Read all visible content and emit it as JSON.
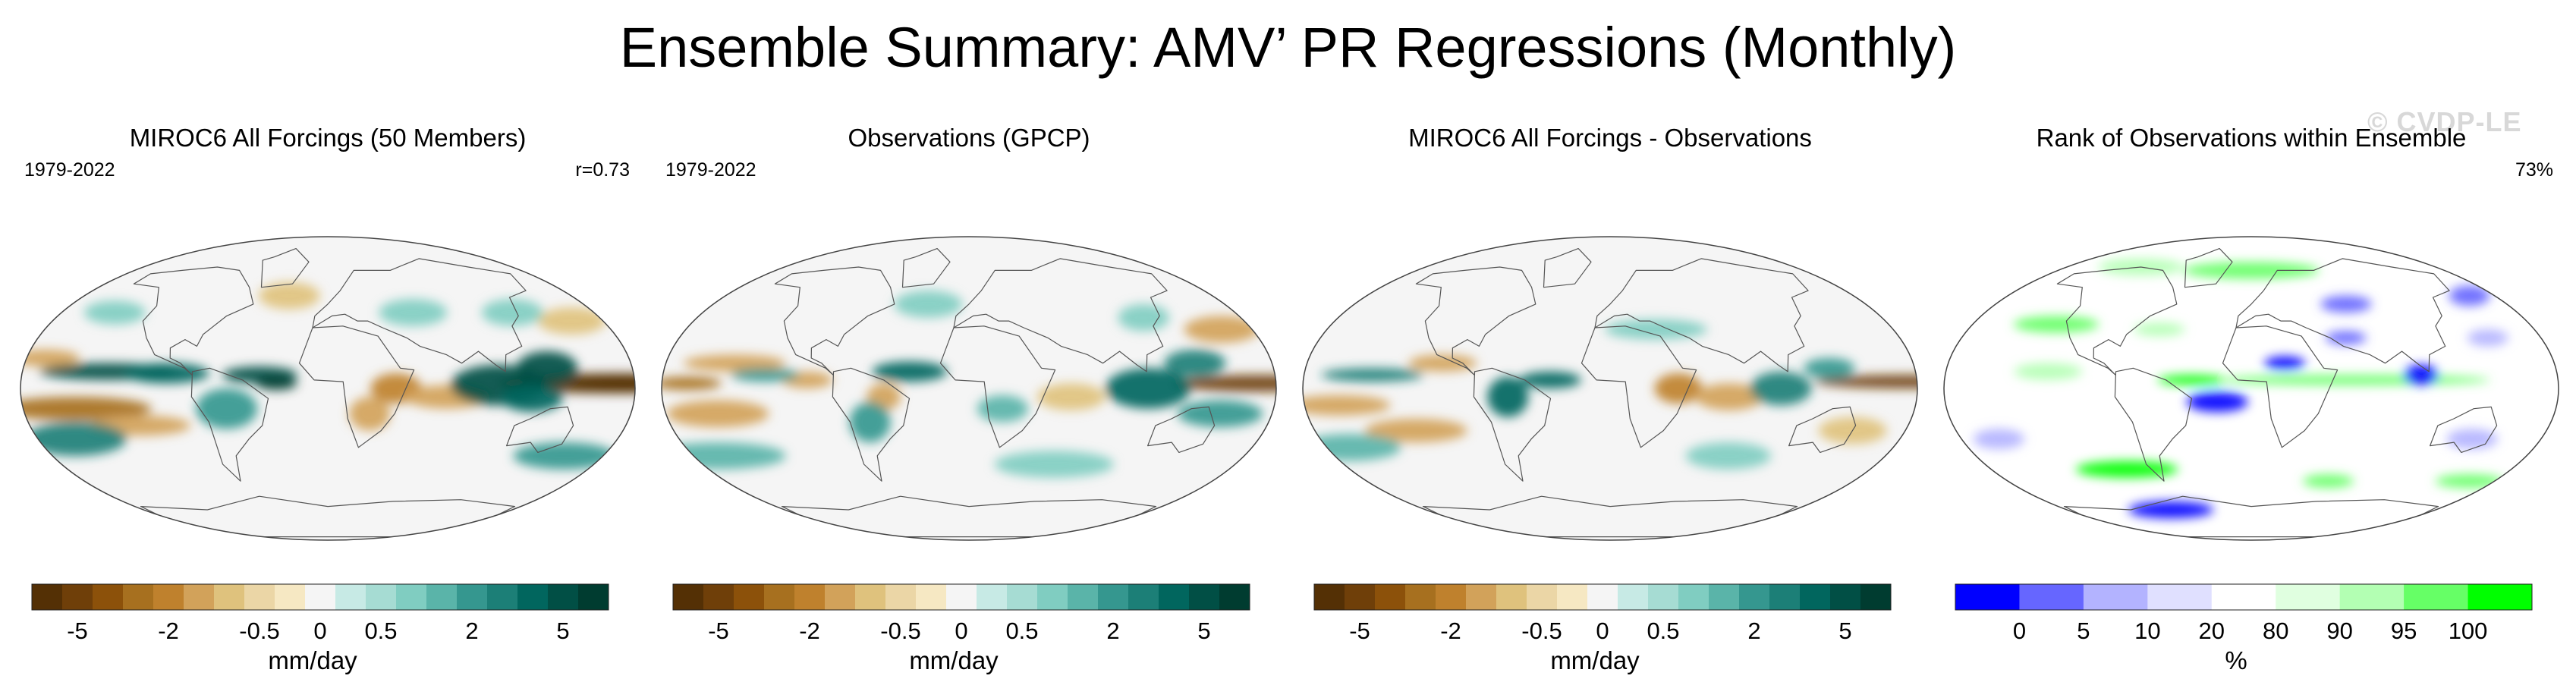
{
  "figure": {
    "title": "Ensemble Summary: AMV’ PR Regressions (Monthly)",
    "watermark": "© CVDP-LE"
  },
  "chart_data": [
    {
      "type": "heatmap",
      "title": "MIROC6 All Forcings (50 Members)",
      "period": "1979-2022",
      "stat": "r=0.73",
      "projection": "robinson",
      "colorbar": {
        "label": "mm/day",
        "ticks": [
          "-5",
          "-2",
          "-0.5",
          "0",
          "0.5",
          "2",
          "5"
        ],
        "colors": [
          "#543005",
          "#6f3f09",
          "#8c510a",
          "#a7701f",
          "#bf812d",
          "#d2a25a",
          "#dfc27d",
          "#ebd6a6",
          "#f6e8c3",
          "#f5f5f5",
          "#c7eae5",
          "#a6dcd3",
          "#80cdc1",
          "#5ab4a9",
          "#35978f",
          "#1c7f77",
          "#01665e",
          "#014f45",
          "#003c30"
        ]
      },
      "features": [
        {
          "lon": 170,
          "lat": 3,
          "rx": 70,
          "ry": 6,
          "v": -1
        },
        {
          "lon": 180,
          "lat": 3,
          "rx": 35,
          "ry": 3,
          "v": -1
        },
        {
          "lon": -150,
          "lat": -12,
          "rx": 45,
          "ry": 7,
          "v": -0.7
        },
        {
          "lon": -115,
          "lat": -22,
          "rx": 30,
          "ry": 6,
          "v": -0.5
        },
        {
          "lon": -170,
          "lat": 18,
          "rx": 20,
          "ry": 5,
          "v": -0.4
        },
        {
          "lon": 40,
          "lat": 0,
          "rx": 15,
          "ry": 9,
          "v": -0.6
        },
        {
          "lon": 70,
          "lat": -5,
          "rx": 25,
          "ry": 7,
          "v": -0.45
        },
        {
          "lon": 25,
          "lat": -15,
          "rx": 12,
          "ry": 10,
          "v": -0.4
        },
        {
          "lon": 165,
          "lat": 40,
          "rx": 20,
          "ry": 8,
          "v": -0.35
        },
        {
          "lon": -30,
          "lat": 55,
          "rx": 18,
          "ry": 8,
          "v": -0.35
        },
        {
          "lon": 100,
          "lat": 2,
          "rx": 28,
          "ry": 12,
          "v": 0.9
        },
        {
          "lon": 130,
          "lat": 12,
          "rx": 18,
          "ry": 10,
          "v": 0.9
        },
        {
          "lon": 120,
          "lat": -6,
          "rx": 18,
          "ry": 8,
          "v": 0.8
        },
        {
          "lon": -130,
          "lat": 10,
          "rx": 40,
          "ry": 5,
          "v": 0.85
        },
        {
          "lon": -95,
          "lat": 9,
          "rx": 25,
          "ry": 6,
          "v": 0.8
        },
        {
          "lon": -40,
          "lat": 8,
          "rx": 22,
          "ry": 5,
          "v": 0.9
        },
        {
          "lon": -30,
          "lat": 3,
          "rx": 12,
          "ry": 4,
          "v": 1
        },
        {
          "lon": -60,
          "lat": -12,
          "rx": 18,
          "ry": 12,
          "v": 0.6
        },
        {
          "lon": -160,
          "lat": -30,
          "rx": 30,
          "ry": 10,
          "v": 0.7
        },
        {
          "lon": 160,
          "lat": -40,
          "rx": 30,
          "ry": 8,
          "v": 0.5
        },
        {
          "lon": 130,
          "lat": 45,
          "rx": 18,
          "ry": 8,
          "v": 0.35
        },
        {
          "lon": -150,
          "lat": 45,
          "rx": 18,
          "ry": 7,
          "v": 0.35
        },
        {
          "lon": 60,
          "lat": 45,
          "rx": 20,
          "ry": 8,
          "v": 0.3
        }
      ]
    },
    {
      "type": "heatmap",
      "title": "Observations (GPCP)",
      "period": "1979-2022",
      "stat": "",
      "projection": "robinson",
      "colorbar": {
        "label": "mm/day",
        "ticks": [
          "-5",
          "-2",
          "-0.5",
          "0",
          "0.5",
          "2",
          "5"
        ],
        "colors": [
          "#543005",
          "#6f3f09",
          "#8c510a",
          "#a7701f",
          "#bf812d",
          "#d2a25a",
          "#dfc27d",
          "#ebd6a6",
          "#f6e8c3",
          "#f5f5f5",
          "#c7eae5",
          "#a6dcd3",
          "#80cdc1",
          "#5ab4a9",
          "#35978f",
          "#1c7f77",
          "#01665e",
          "#014f45",
          "#003c30"
        ]
      },
      "features": [
        {
          "lon": 170,
          "lat": 3,
          "rx": 50,
          "ry": 5,
          "v": -0.9
        },
        {
          "lon": -165,
          "lat": 3,
          "rx": 20,
          "ry": 4,
          "v": -0.7
        },
        {
          "lon": -150,
          "lat": -15,
          "rx": 30,
          "ry": 8,
          "v": -0.45
        },
        {
          "lon": -140,
          "lat": 15,
          "rx": 30,
          "ry": 5,
          "v": -0.4
        },
        {
          "lon": 60,
          "lat": -5,
          "rx": 20,
          "ry": 8,
          "v": -0.35
        },
        {
          "lon": -95,
          "lat": 5,
          "rx": 15,
          "ry": 5,
          "v": -0.5
        },
        {
          "lon": -50,
          "lat": -5,
          "rx": 10,
          "ry": 8,
          "v": -0.4
        },
        {
          "lon": 165,
          "lat": 35,
          "rx": 22,
          "ry": 8,
          "v": -0.4
        },
        {
          "lon": 105,
          "lat": 0,
          "rx": 25,
          "ry": 12,
          "v": 0.8
        },
        {
          "lon": 135,
          "lat": 15,
          "rx": 18,
          "ry": 8,
          "v": 0.7
        },
        {
          "lon": 150,
          "lat": -15,
          "rx": 25,
          "ry": 8,
          "v": 0.6
        },
        {
          "lon": -120,
          "lat": 8,
          "rx": 20,
          "ry": 4,
          "v": 0.55
        },
        {
          "lon": -35,
          "lat": 10,
          "rx": 22,
          "ry": 6,
          "v": 0.75
        },
        {
          "lon": -60,
          "lat": -20,
          "rx": 12,
          "ry": 12,
          "v": 0.55
        },
        {
          "lon": 20,
          "lat": -12,
          "rx": 15,
          "ry": 8,
          "v": 0.45
        },
        {
          "lon": -170,
          "lat": -40,
          "rx": 40,
          "ry": 8,
          "v": 0.45
        },
        {
          "lon": 60,
          "lat": -45,
          "rx": 35,
          "ry": 8,
          "v": 0.35
        },
        {
          "lon": 120,
          "lat": 42,
          "rx": 15,
          "ry": 8,
          "v": 0.3
        },
        {
          "lon": -30,
          "lat": 50,
          "rx": 20,
          "ry": 8,
          "v": 0.3
        }
      ]
    },
    {
      "type": "heatmap",
      "title": "MIROC6 All Forcings - Observations",
      "period": "",
      "stat": "",
      "projection": "robinson",
      "colorbar": {
        "label": "mm/day",
        "ticks": [
          "-5",
          "-2",
          "-0.5",
          "0",
          "0.5",
          "2",
          "5"
        ],
        "colors": [
          "#543005",
          "#6f3f09",
          "#8c510a",
          "#a7701f",
          "#bf812d",
          "#d2a25a",
          "#dfc27d",
          "#ebd6a6",
          "#f6e8c3",
          "#f5f5f5",
          "#c7eae5",
          "#a6dcd3",
          "#80cdc1",
          "#5ab4a9",
          "#35978f",
          "#1c7f77",
          "#01665e",
          "#014f45",
          "#003c30"
        ]
      },
      "features": [
        {
          "lon": 175,
          "lat": 4,
          "rx": 55,
          "ry": 4,
          "v": -0.9
        },
        {
          "lon": -160,
          "lat": -10,
          "rx": 30,
          "ry": 6,
          "v": -0.5
        },
        {
          "lon": -120,
          "lat": -25,
          "rx": 30,
          "ry": 7,
          "v": -0.4
        },
        {
          "lon": 40,
          "lat": 0,
          "rx": 14,
          "ry": 9,
          "v": -0.55
        },
        {
          "lon": 70,
          "lat": -5,
          "rx": 20,
          "ry": 8,
          "v": -0.4
        },
        {
          "lon": 150,
          "lat": -25,
          "rx": 20,
          "ry": 8,
          "v": -0.35
        },
        {
          "lon": -100,
          "lat": 15,
          "rx": 20,
          "ry": 5,
          "v": -0.45
        },
        {
          "lon": 100,
          "lat": 0,
          "rx": 18,
          "ry": 10,
          "v": 0.7
        },
        {
          "lon": 130,
          "lat": 12,
          "rx": 15,
          "ry": 6,
          "v": 0.6
        },
        {
          "lon": -140,
          "lat": 8,
          "rx": 30,
          "ry": 4,
          "v": 0.7
        },
        {
          "lon": -35,
          "lat": 5,
          "rx": 18,
          "ry": 5,
          "v": 0.8
        },
        {
          "lon": -60,
          "lat": -5,
          "rx": 12,
          "ry": 12,
          "v": 0.75
        },
        {
          "lon": -170,
          "lat": -35,
          "rx": 30,
          "ry": 8,
          "v": 0.45
        },
        {
          "lon": 80,
          "lat": -40,
          "rx": 25,
          "ry": 8,
          "v": 0.35
        },
        {
          "lon": 30,
          "lat": 35,
          "rx": 30,
          "ry": 6,
          "v": 0.3
        }
      ]
    },
    {
      "type": "heatmap",
      "title": "Rank of Observations within Ensemble",
      "period": "",
      "stat": "73%",
      "projection": "robinson",
      "colorbar": {
        "label": "%",
        "ticks": [
          "0",
          "5",
          "10",
          "20",
          "80",
          "90",
          "95",
          "100"
        ],
        "colors": [
          "#0000ff",
          "#6666ff",
          "#b3b3ff",
          "#e0e0ff",
          "#ffffff",
          "#e0ffe0",
          "#b3ffb3",
          "#66ff66",
          "#00ff00"
        ]
      },
      "features": [
        {
          "lon": 60,
          "lat": 5,
          "rx": 80,
          "ry": 3,
          "v": 0.8
        },
        {
          "lon": -35,
          "lat": 5,
          "rx": 20,
          "ry": 3,
          "v": 0.9
        },
        {
          "lon": -130,
          "lat": 38,
          "rx": 25,
          "ry": 5,
          "v": 0.85
        },
        {
          "lon": -90,
          "lat": -48,
          "rx": 30,
          "ry": 5,
          "v": 1
        },
        {
          "lon": 60,
          "lat": -55,
          "rx": 15,
          "ry": 4,
          "v": 0.8
        },
        {
          "lon": 170,
          "lat": -55,
          "rx": 20,
          "ry": 4,
          "v": 0.7
        },
        {
          "lon": 0,
          "lat": 70,
          "rx": 40,
          "ry": 5,
          "v": 0.8
        },
        {
          "lon": -110,
          "lat": 72,
          "rx": 25,
          "ry": 5,
          "v": 0.6
        },
        {
          "lon": -120,
          "lat": 10,
          "rx": 20,
          "ry": 5,
          "v": 0.55
        },
        {
          "lon": -60,
          "lat": 35,
          "rx": 15,
          "ry": 4,
          "v": 0.6
        },
        {
          "lon": 20,
          "lat": 15,
          "rx": 12,
          "ry": 4,
          "v": -1
        },
        {
          "lon": 100,
          "lat": 8,
          "rx": 10,
          "ry": 6,
          "v": -1
        },
        {
          "lon": -20,
          "lat": -8,
          "rx": 18,
          "ry": 6,
          "v": -1
        },
        {
          "lon": 70,
          "lat": 50,
          "rx": 15,
          "ry": 5,
          "v": -0.8
        },
        {
          "lon": -80,
          "lat": -72,
          "rx": 25,
          "ry": 5,
          "v": -1
        },
        {
          "lon": 60,
          "lat": 30,
          "rx": 12,
          "ry": 4,
          "v": -0.85
        },
        {
          "lon": -160,
          "lat": -30,
          "rx": 15,
          "ry": 6,
          "v": -0.6
        },
        {
          "lon": 150,
          "lat": 30,
          "rx": 12,
          "ry": 5,
          "v": -0.6
        },
        {
          "lon": 140,
          "lat": -30,
          "rx": 15,
          "ry": 6,
          "v": -0.4
        },
        {
          "lon": 170,
          "lat": 55,
          "rx": 12,
          "ry": 6,
          "v": -0.8
        }
      ]
    }
  ]
}
